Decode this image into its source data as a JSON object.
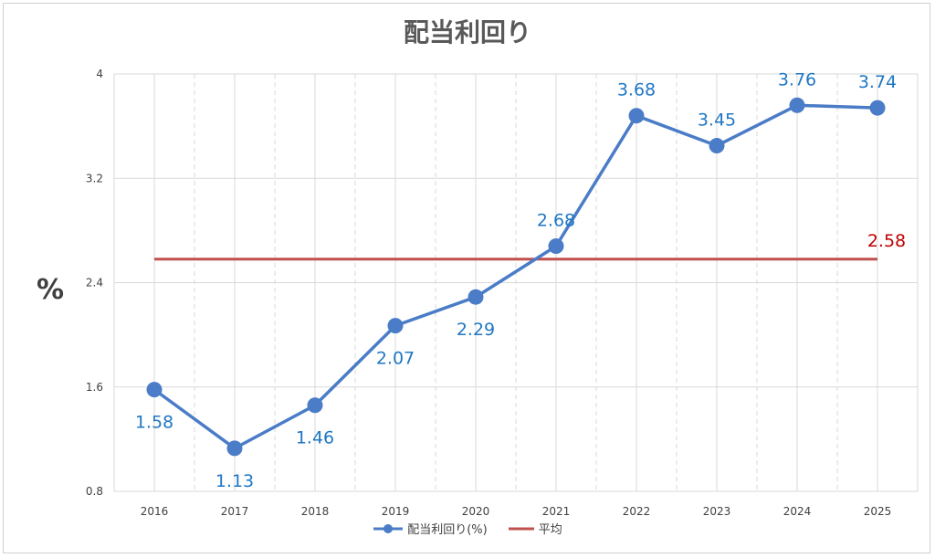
{
  "chart_data": {
    "type": "line",
    "title": "配当利回り",
    "ylabel": "%",
    "xlabel": "",
    "categories": [
      "2016",
      "2017",
      "2018",
      "2019",
      "2020",
      "2021",
      "2022",
      "2023",
      "2024",
      "2025"
    ],
    "series": [
      {
        "name": "配当利回り(%)",
        "values": [
          1.58,
          1.13,
          1.46,
          2.07,
          2.29,
          2.68,
          3.68,
          3.45,
          3.76,
          3.74
        ],
        "labels": [
          "1.58",
          "1.13",
          "1.46",
          "2.07",
          "2.29",
          "2.68",
          "3.68",
          "3.45",
          "3.76",
          "3.74"
        ],
        "label_position": [
          "below",
          "below",
          "below",
          "below",
          "below",
          "above",
          "above",
          "above",
          "above",
          "above"
        ],
        "color": "#4a7cc7"
      },
      {
        "name": "平均",
        "values": [
          2.58,
          2.58,
          2.58,
          2.58,
          2.58,
          2.58,
          2.58,
          2.58,
          2.58,
          2.58
        ],
        "label": "2.58",
        "color": "#c0504d"
      }
    ],
    "ylim": [
      0.8,
      4
    ],
    "yticks": [
      "0.8",
      "1.6",
      "2.4",
      "3.2",
      "4"
    ],
    "grid": true,
    "legend_position": "bottom"
  },
  "colors": {
    "series_line": "#4a7cc7",
    "average_line": "#c0504d",
    "data_label": "#1f77c4",
    "average_label": "#c00000"
  }
}
